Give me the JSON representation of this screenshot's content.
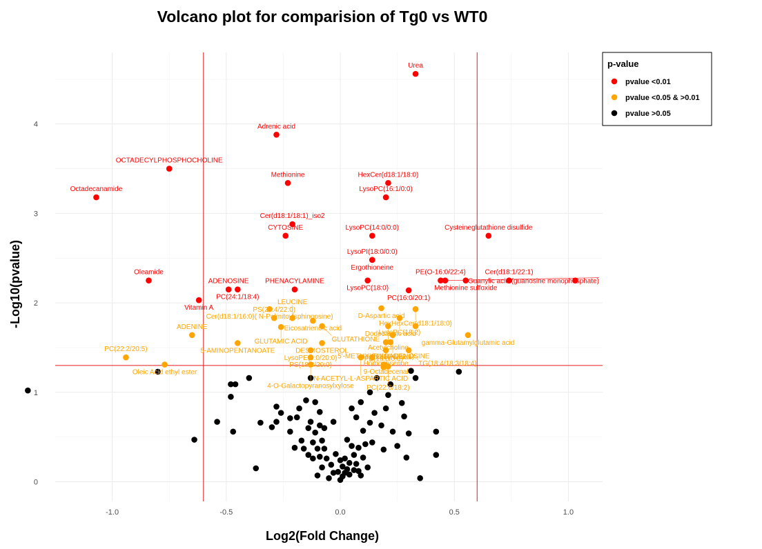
{
  "chart_data": {
    "type": "scatter",
    "title": "Volcano plot for comparision of Tg0 vs WT0",
    "xlabel": "Log2(Fold Change)",
    "ylabel": "-Log10(pvalue)",
    "xlim": [
      -1.25,
      1.15
    ],
    "ylim": [
      -0.22,
      4.8
    ],
    "x_ticks": [
      -1.0,
      -0.5,
      0.0,
      0.5,
      1.0
    ],
    "x_tick_labels": [
      "-1.0",
      "-0.5",
      "0.0",
      "0.5",
      "1.0"
    ],
    "y_ticks": [
      0,
      1,
      2,
      3,
      4
    ],
    "y_tick_labels": [
      "0",
      "1",
      "2",
      "3",
      "4"
    ],
    "grid": true,
    "thresholds": {
      "vertical": [
        -0.6,
        0.6
      ],
      "horizontal": 1.3,
      "color": "#e41a1c"
    },
    "colors": {
      "red": "#ff0000",
      "orange": "#ffa500",
      "black": "#000000"
    },
    "legend": {
      "title": "p-value",
      "placement": "right",
      "items": [
        {
          "label": "pvalue <0.01",
          "color": "#ff0000"
        },
        {
          "label": "pvalue <0.05 & >0.01",
          "color": "#ffa500"
        },
        {
          "label": "pvalue >0.05",
          "color": "#000000"
        }
      ]
    },
    "series": [
      {
        "name": "pvalue <0.01",
        "color": "#ff0000",
        "points": [
          {
            "x": 0.33,
            "y": 4.56,
            "label": "Urea"
          },
          {
            "x": -0.28,
            "y": 3.88,
            "label": "Adrenic acid"
          },
          {
            "x": -0.75,
            "y": 3.5,
            "label": "OCTADECYLPHOSPHOCHOLINE"
          },
          {
            "x": -0.23,
            "y": 3.34,
            "label": "Methionine"
          },
          {
            "x": 0.21,
            "y": 3.34,
            "label": "HexCer(d18:1/18:0)"
          },
          {
            "x": -1.07,
            "y": 3.18,
            "label": "Octadecanamide"
          },
          {
            "x": 0.2,
            "y": 3.18,
            "label": "LysoPC(16:1/0:0)"
          },
          {
            "x": -0.21,
            "y": 2.88,
            "label": "Cer(d18:1/18:1)_iso2"
          },
          {
            "x": -0.24,
            "y": 2.75,
            "label": "CYTOSINE"
          },
          {
            "x": 0.14,
            "y": 2.75,
            "label": "LysoPC(14:0/0:0)"
          },
          {
            "x": 0.65,
            "y": 2.75,
            "label": "Cysteineglutathione disulfide"
          },
          {
            "x": 0.14,
            "y": 2.48,
            "label": "LysoPI(18:0/0:0)"
          },
          {
            "x": 0.14,
            "y": 2.48,
            "label": "Ergothioneine"
          },
          {
            "x": -0.84,
            "y": 2.25,
            "label": "Oleamide"
          },
          {
            "x": 0.12,
            "y": 2.25,
            "label": "LysoPC(18:0)"
          },
          {
            "x": 0.3,
            "y": 2.14,
            "label": "PC(16:0/20:1)"
          },
          {
            "x": -0.49,
            "y": 2.15,
            "label": "ADENOSINE"
          },
          {
            "x": -0.45,
            "y": 2.15,
            "label": "PC(24:1/18:4)"
          },
          {
            "x": -0.2,
            "y": 2.15,
            "label": "PHENACYLAMINE"
          },
          {
            "x": 0.44,
            "y": 2.25,
            "label": "PE(O-16:0/22:4)"
          },
          {
            "x": 0.46,
            "y": 2.25,
            "label": "Guanylic acid (guanosine monophosphate)"
          },
          {
            "x": 0.55,
            "y": 2.25,
            "label": "Methionine sulfoxide"
          },
          {
            "x": 0.74,
            "y": 2.25,
            "label": "Cer(d18:1/22:1)"
          },
          {
            "x": 1.03,
            "y": 2.25,
            "label": ""
          },
          {
            "x": -0.62,
            "y": 2.03,
            "label": "Vitamin A"
          }
        ]
      },
      {
        "name": "pvalue <0.05 & >0.01",
        "color": "#ffa500",
        "points": [
          {
            "x": -0.31,
            "y": 1.93,
            "label": "Cer(d18:1/16:0)( N-Palmitoylsphingosine)"
          },
          {
            "x": -0.12,
            "y": 1.8,
            "label": "Eicosatrienoic acid"
          },
          {
            "x": 0.18,
            "y": 1.94,
            "label": "D-Aspartic acid"
          },
          {
            "x": 0.33,
            "y": 1.93,
            "label": "HexHexCer(d18:1/18:0)"
          },
          {
            "x": -0.29,
            "y": 1.83,
            "label": "PS(20:4/22:0)"
          },
          {
            "x": -0.21,
            "y": 1.83,
            "label": "LEUCINE"
          },
          {
            "x": 0.26,
            "y": 1.83,
            "label": "LysoPC(18:2)"
          },
          {
            "x": -0.26,
            "y": 1.73,
            "label": "GLUTAMIC ACID"
          },
          {
            "x": -0.08,
            "y": 1.74,
            "label": "GLUTATHIONE"
          },
          {
            "x": 0.21,
            "y": 1.74,
            "label": "Acetylcholine"
          },
          {
            "x": 0.33,
            "y": 1.74,
            "label": ""
          },
          {
            "x": -0.65,
            "y": 1.64,
            "label": "ADENINE"
          },
          {
            "x": 0.23,
            "y": 1.64,
            "label": "PC(16:0/22:1)"
          },
          {
            "x": 0.56,
            "y": 1.64,
            "label": "gamma-Glutamylglutamic acid"
          },
          {
            "x": -0.45,
            "y": 1.55,
            "label": "5-AMINOPENTANOATE"
          },
          {
            "x": -0.08,
            "y": 1.55,
            "label": "DESMOSTEROL"
          },
          {
            "x": 0.2,
            "y": 1.56,
            "label": "Homoanserine"
          },
          {
            "x": 0.22,
            "y": 1.56,
            "label": "Dodecanoic acid"
          },
          {
            "x": -0.13,
            "y": 1.47,
            "label": "LysoPE(0:0/20:0)"
          },
          {
            "x": 0.2,
            "y": 1.47,
            "label": "9-Octadecenal"
          },
          {
            "x": 0.3,
            "y": 1.47,
            "label": "TG(18:4/18:3/18:4)"
          },
          {
            "x": -0.94,
            "y": 1.39,
            "label": "PC(22:2/20:5)"
          },
          {
            "x": -0.13,
            "y": 1.39,
            "label": "PS(18:3/20:0)"
          },
          {
            "x": 0.09,
            "y": 1.39,
            "label": "N-ACETYL-L-ASPARTIC ACID"
          },
          {
            "x": 0.14,
            "y": 1.39,
            "label": ""
          },
          {
            "x": -0.77,
            "y": 1.31,
            "label": "Oleic Acid ethyl ester"
          },
          {
            "x": -0.13,
            "y": 1.31,
            "label": "4-O-Galactopyranosylxylose"
          },
          {
            "x": 0.19,
            "y": 1.31,
            "label": "5'-METHYLTHIOADENOSINE"
          },
          {
            "x": 0.2,
            "y": 1.3,
            "label": "Dihydroceramide"
          },
          {
            "x": 0.21,
            "y": 1.29,
            "label": "PC(22:6/18:2)"
          },
          {
            "x": 0.19,
            "y": 1.28,
            "label": "PE(16:0/0:0)"
          }
        ]
      },
      {
        "name": "pvalue >0.05",
        "color": "#000000",
        "points": [
          {
            "x": -1.37,
            "y": 1.02
          },
          {
            "x": -0.8,
            "y": 1.23
          },
          {
            "x": -0.64,
            "y": 0.47
          },
          {
            "x": -0.54,
            "y": 0.67
          },
          {
            "x": -0.48,
            "y": 0.95
          },
          {
            "x": -0.48,
            "y": 1.09
          },
          {
            "x": -0.46,
            "y": 1.09
          },
          {
            "x": -0.47,
            "y": 0.56
          },
          {
            "x": -0.4,
            "y": 1.16
          },
          {
            "x": -0.37,
            "y": 0.15
          },
          {
            "x": -0.35,
            "y": 0.66
          },
          {
            "x": -0.3,
            "y": 0.61
          },
          {
            "x": -0.28,
            "y": 0.84
          },
          {
            "x": -0.28,
            "y": 0.67
          },
          {
            "x": -0.26,
            "y": 0.77
          },
          {
            "x": -0.22,
            "y": 0.71
          },
          {
            "x": -0.22,
            "y": 0.56
          },
          {
            "x": -0.2,
            "y": 0.38
          },
          {
            "x": -0.19,
            "y": 0.72
          },
          {
            "x": -0.18,
            "y": 0.82
          },
          {
            "x": -0.17,
            "y": 0.46
          },
          {
            "x": -0.16,
            "y": 0.37
          },
          {
            "x": -0.15,
            "y": 0.91
          },
          {
            "x": -0.14,
            "y": 0.6
          },
          {
            "x": -0.14,
            "y": 0.3
          },
          {
            "x": -0.13,
            "y": 1.16
          },
          {
            "x": -0.13,
            "y": 0.67
          },
          {
            "x": -0.12,
            "y": 0.44
          },
          {
            "x": -0.12,
            "y": 0.26
          },
          {
            "x": -0.11,
            "y": 0.89
          },
          {
            "x": -0.11,
            "y": 0.55
          },
          {
            "x": -0.1,
            "y": 0.37
          },
          {
            "x": -0.1,
            "y": 0.07
          },
          {
            "x": -0.09,
            "y": 0.78
          },
          {
            "x": -0.09,
            "y": 0.63
          },
          {
            "x": -0.09,
            "y": 0.28
          },
          {
            "x": -0.08,
            "y": 0.46
          },
          {
            "x": -0.08,
            "y": 0.16
          },
          {
            "x": -0.07,
            "y": 0.6
          },
          {
            "x": -0.07,
            "y": 0.37
          },
          {
            "x": -0.06,
            "y": 0.26
          },
          {
            "x": -0.05,
            "y": 0.04
          },
          {
            "x": -0.04,
            "y": 0.19
          },
          {
            "x": -0.03,
            "y": 0.67
          },
          {
            "x": -0.02,
            "y": 0.31
          },
          {
            "x": -0.01,
            "y": 0.11
          },
          {
            "x": 0.0,
            "y": 0.24
          },
          {
            "x": 0.0,
            "y": 0.02
          },
          {
            "x": 0.01,
            "y": 0.17
          },
          {
            "x": 0.01,
            "y": 0.06
          },
          {
            "x": 0.02,
            "y": 0.26
          },
          {
            "x": 0.02,
            "y": 0.1
          },
          {
            "x": 0.03,
            "y": 0.47
          },
          {
            "x": 0.03,
            "y": 0.14
          },
          {
            "x": 0.04,
            "y": 0.21
          },
          {
            "x": 0.04,
            "y": 0.08
          },
          {
            "x": 0.05,
            "y": 0.82
          },
          {
            "x": 0.05,
            "y": 0.4
          },
          {
            "x": 0.06,
            "y": 0.3
          },
          {
            "x": 0.06,
            "y": 0.13
          },
          {
            "x": 0.07,
            "y": 0.72
          },
          {
            "x": 0.07,
            "y": 0.2
          },
          {
            "x": 0.08,
            "y": 0.38
          },
          {
            "x": 0.09,
            "y": 0.07
          },
          {
            "x": 0.09,
            "y": 0.89
          },
          {
            "x": 0.1,
            "y": 0.57
          },
          {
            "x": 0.1,
            "y": 0.27
          },
          {
            "x": 0.11,
            "y": 0.42
          },
          {
            "x": 0.12,
            "y": 0.16
          },
          {
            "x": 0.13,
            "y": 0.66
          },
          {
            "x": 0.13,
            "y": 1.0
          },
          {
            "x": 0.14,
            "y": 0.44
          },
          {
            "x": 0.15,
            "y": 0.77
          },
          {
            "x": 0.16,
            "y": 1.16
          },
          {
            "x": 0.18,
            "y": 0.63
          },
          {
            "x": 0.19,
            "y": 0.36
          },
          {
            "x": 0.2,
            "y": 0.82
          },
          {
            "x": 0.21,
            "y": 0.97
          },
          {
            "x": 0.22,
            "y": 1.09
          },
          {
            "x": 0.23,
            "y": 0.56
          },
          {
            "x": 0.25,
            "y": 0.4
          },
          {
            "x": 0.27,
            "y": 0.88
          },
          {
            "x": 0.28,
            "y": 0.73
          },
          {
            "x": 0.29,
            "y": 0.27
          },
          {
            "x": 0.3,
            "y": 0.54
          },
          {
            "x": 0.31,
            "y": 1.24
          },
          {
            "x": 0.33,
            "y": 1.16
          },
          {
            "x": 0.35,
            "y": 0.04
          },
          {
            "x": 0.42,
            "y": 0.56
          },
          {
            "x": 0.42,
            "y": 0.3
          },
          {
            "x": 0.52,
            "y": 1.23
          },
          {
            "x": -0.03,
            "y": 0.1
          },
          {
            "x": 0.08,
            "y": 0.12
          }
        ]
      }
    ]
  }
}
